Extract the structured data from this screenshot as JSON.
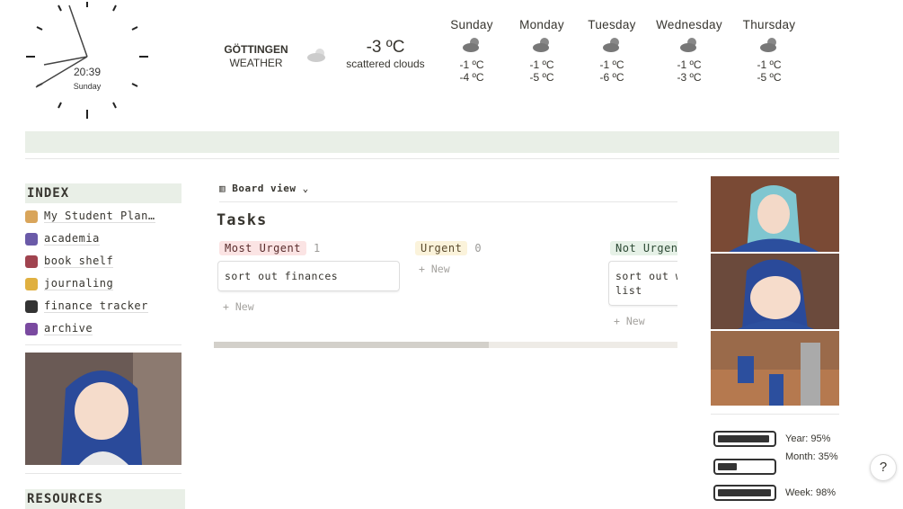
{
  "clock": {
    "time": "20:39",
    "day": "Sunday"
  },
  "weather": {
    "city": "GÖTTINGEN",
    "label": "WEATHER",
    "temp": "-3 ºC",
    "condition": "scattered clouds",
    "forecast": [
      {
        "day": "Sunday",
        "high": "-1 ºC",
        "low": "-4 ºC"
      },
      {
        "day": "Monday",
        "high": "-1 ºC",
        "low": "-5 ºC"
      },
      {
        "day": "Tuesday",
        "high": "-1 ºC",
        "low": "-6 ºC"
      },
      {
        "day": "Wednesday",
        "high": "-1 ºC",
        "low": "-3 ºC"
      },
      {
        "day": "Thursday",
        "high": "-1 ºC",
        "low": "-5 ºC"
      }
    ]
  },
  "sidebar": {
    "title": "INDEX",
    "items": [
      "My Student Plan…",
      "academia",
      "book shelf",
      "journaling",
      "finance tracker",
      "archive"
    ],
    "footer": "RESOURCES"
  },
  "board": {
    "view": "Board view",
    "title": "Tasks",
    "new": "New",
    "columns": [
      {
        "name": "Most Urgent",
        "count": "1",
        "cards": [
          "sort out finances"
        ]
      },
      {
        "name": "Urgent",
        "count": "0",
        "cards": []
      },
      {
        "name": "Not Urgent",
        "cards": [
          "sort out w list"
        ]
      }
    ]
  },
  "progress": [
    {
      "label": "Year: 95%",
      "value": 95
    },
    {
      "label": "Month: 35%",
      "value": 35
    },
    {
      "label": "Week: 98%",
      "value": 98
    }
  ],
  "help": "?"
}
